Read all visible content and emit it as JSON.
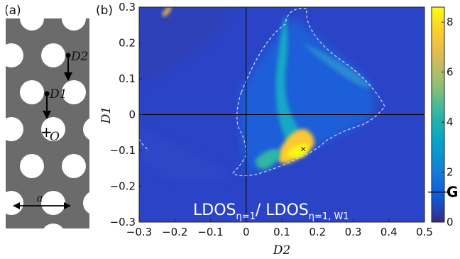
{
  "panel_a": {
    "label": "(a)",
    "points": [
      "D2",
      "D1",
      "O"
    ],
    "lattice_label": "a"
  },
  "chart_data": {
    "type": "heatmap",
    "panel_label": "(b)",
    "xlabel": "D2",
    "ylabel": "D1",
    "xlim": [
      -0.3,
      0.5
    ],
    "ylim": [
      -0.3,
      0.3
    ],
    "x_ticks": [
      "−0.3",
      "−0.2",
      "−0.1",
      "0",
      "0.1",
      "0.2",
      "0.3",
      "0.4",
      "0.5"
    ],
    "x_tick_values": [
      -0.3,
      -0.2,
      -0.1,
      0,
      0.1,
      0.2,
      0.3,
      0.4,
      0.5
    ],
    "y_ticks": [
      "0.3",
      "0.2",
      "0.1",
      "0",
      "−0.1",
      "−0.2",
      "−0.3"
    ],
    "y_tick_values": [
      0.3,
      0.2,
      0.1,
      0,
      -0.1,
      -0.2,
      -0.3
    ],
    "colorbar": {
      "ticks": [
        "0",
        "2",
        "4",
        "6",
        "8"
      ],
      "tick_values": [
        0,
        2,
        4,
        6,
        8
      ],
      "range": [
        0,
        8.6
      ],
      "marker_label": "G",
      "marker_value": 1.2,
      "colors": [
        "#352a87",
        "#0f5cdd",
        "#1481d6",
        "#06a4ca",
        "#2eb7a4",
        "#87bf77",
        "#d1bb59",
        "#fec832",
        "#f9fb0e"
      ]
    },
    "annotation": {
      "base": "LDOS",
      "num_sub": "η=1",
      "sep": "/ ",
      "den_sub": "η=1, W1"
    },
    "background_color": "#2b43c6",
    "highlight_point": {
      "x": 0.16,
      "y": -0.095
    }
  }
}
